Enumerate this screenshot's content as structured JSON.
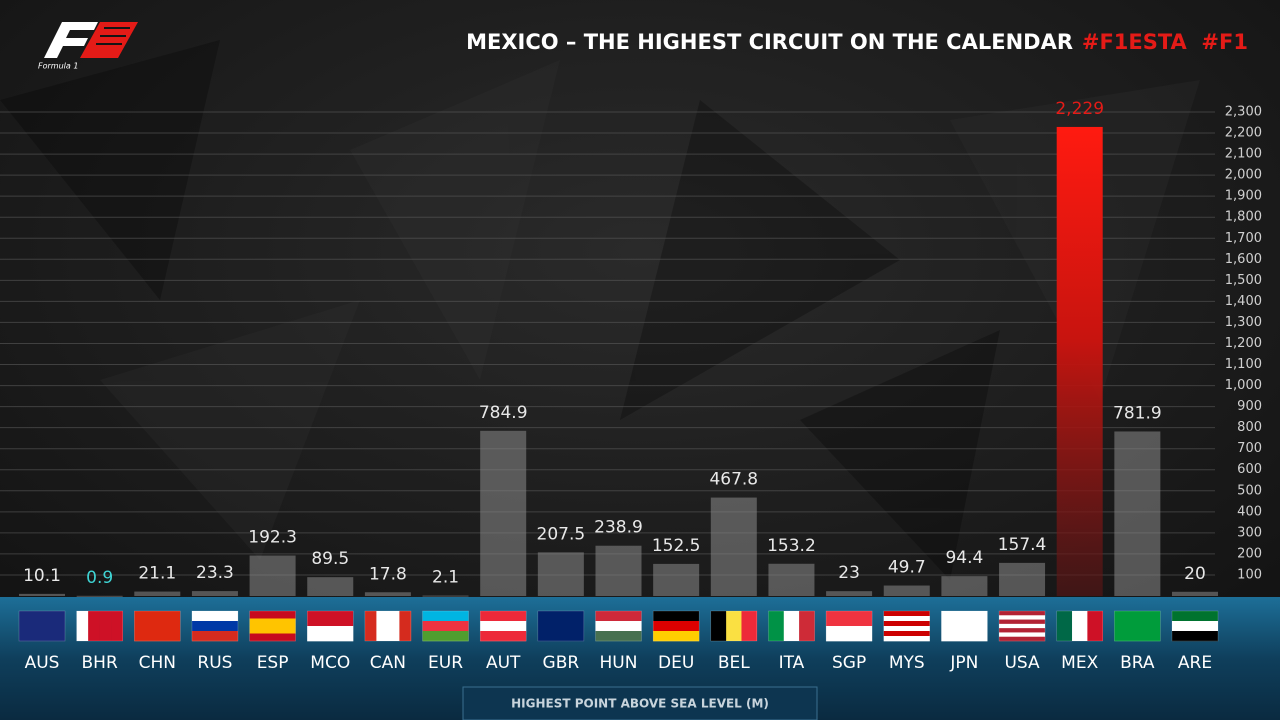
{
  "chart_data": {
    "type": "bar",
    "title": "MEXICO – THE HIGHEST CIRCUIT ON THE CALENDAR",
    "hashtags": "#F1ESTA  #F1",
    "logo": "Formula 1",
    "x_label": "HIGHEST POINT ABOVE SEA LEVEL (M)",
    "categories": [
      "AUS",
      "BHR",
      "CHN",
      "RUS",
      "ESP",
      "MCO",
      "CAN",
      "EUR",
      "AUT",
      "GBR",
      "HUN",
      "DEU",
      "BEL",
      "ITA",
      "SGP",
      "MYS",
      "JPN",
      "USA",
      "MEX",
      "BRA",
      "ARE"
    ],
    "values": [
      10.1,
      0.9,
      21.1,
      23.3,
      192.3,
      89.5,
      17.8,
      2.1,
      784.9,
      207.5,
      238.9,
      152.5,
      467.8,
      153.2,
      23,
      49.7,
      94.4,
      157.4,
      2229,
      781.9,
      20
    ],
    "value_labels": [
      "10.1",
      "0.9",
      "21.1",
      "23.3",
      "192.3",
      "89.5",
      "17.8",
      "2.1",
      "784.9",
      "207.5",
      "238.9",
      "152.5",
      "467.8",
      "153.2",
      "23",
      "49.7",
      "94.4",
      "157.4",
      "2,229",
      "781.9",
      "20"
    ],
    "color": "#8a8a8a",
    "highlight_color": "#e41b17",
    "highlight_index": 18,
    "label_colors": [
      "#e8e8e8",
      "#3fd4d4",
      "#e8e8e8",
      "#e8e8e8",
      "#e8e8e8",
      "#e8e8e8",
      "#e8e8e8",
      "#e8e8e8",
      "#e8e8e8",
      "#e8e8e8",
      "#e8e8e8",
      "#e8e8e8",
      "#e8e8e8",
      "#e8e8e8",
      "#e8e8e8",
      "#e8e8e8",
      "#e8e8e8",
      "#e8e8e8",
      "#e41b17",
      "#e8e8e8",
      "#e8e8e8"
    ],
    "ylim": [
      0,
      2300
    ],
    "yticks": [
      100,
      200,
      300,
      400,
      500,
      600,
      700,
      800,
      900,
      {
        "value": 1000,
        "label": "1,000"
      },
      {
        "value": 1100,
        "label": "1,100"
      },
      {
        "value": 1200,
        "label": "1,200"
      },
      {
        "value": 1300,
        "label": "1,300"
      },
      {
        "value": 1400,
        "label": "1,400"
      },
      {
        "value": 1500,
        "label": "1,500"
      },
      {
        "value": 1600,
        "label": "1,600"
      },
      {
        "value": 1700,
        "label": "1,700"
      },
      {
        "value": 1800,
        "label": "1,800"
      },
      {
        "value": 1900,
        "label": "1,900"
      },
      {
        "value": 2000,
        "label": "2,000"
      },
      {
        "value": 2100,
        "label": "2,100"
      },
      {
        "value": 2200,
        "label": "2,200"
      },
      {
        "value": 2300,
        "label": "2,300"
      }
    ],
    "grid": true
  }
}
